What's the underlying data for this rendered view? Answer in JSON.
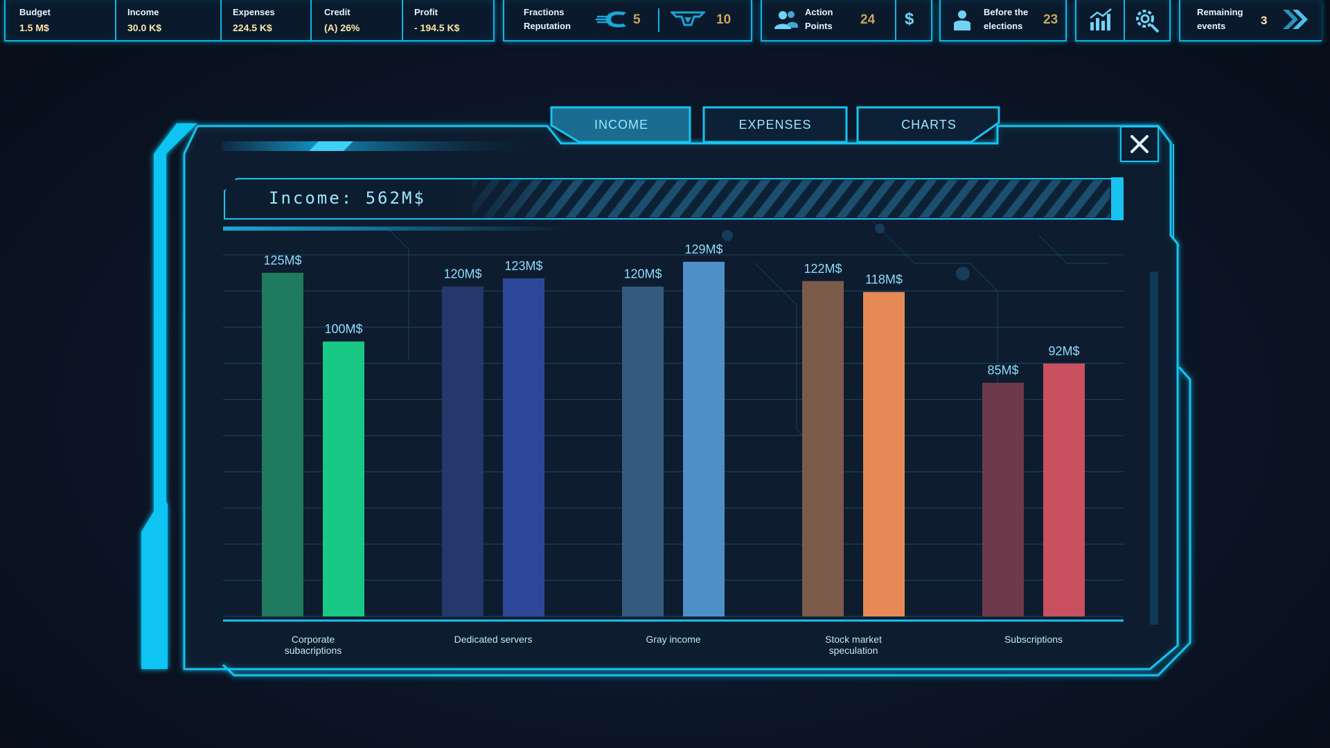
{
  "hud": {
    "budget": {
      "label": "Budget",
      "value": "1.5 M$"
    },
    "income": {
      "label": "Income",
      "value": "30.0 K$"
    },
    "expenses": {
      "label": "Expenses",
      "value": "224.5 K$"
    },
    "credit": {
      "label": "Credit",
      "value": "(A) 26%"
    },
    "profit": {
      "label": "Profit",
      "value": "- 194.5 K$"
    },
    "fractions": {
      "label_line1": "Fractions",
      "label_line2": "Reputation",
      "faction1_value": "5",
      "faction2_value": "10"
    },
    "action_points": {
      "label_line1": "Action",
      "label_line2": "Points",
      "value": "24",
      "currency_symbol": "$"
    },
    "elections": {
      "label_line1": "Before the",
      "label_line2": "elections",
      "value": "23"
    },
    "remaining": {
      "label_line1": "Remaining",
      "label_line2": "events",
      "value": "3"
    }
  },
  "tabs": {
    "income": "INCOME",
    "expenses": "EXPENSES",
    "charts": "CHARTS",
    "active": "income"
  },
  "panel": {
    "header": "Income: 562M$"
  },
  "colors": {
    "accent": "#19c3f0",
    "gold": "#c9a65b"
  },
  "chart_data": {
    "type": "bar",
    "title": "",
    "xlabel": "",
    "ylabel": "",
    "ylim": [
      0,
      150
    ],
    "grid": true,
    "categories": [
      [
        "Corporate",
        "subacriptions"
      ],
      [
        "Dedicated servers"
      ],
      [
        "Gray income"
      ],
      [
        "Stock market",
        "speculation"
      ],
      [
        "Subscriptions"
      ]
    ],
    "series": [
      {
        "values": [
          125,
          120,
          120,
          122,
          85
        ],
        "labels": [
          "125M$",
          "120M$",
          "120M$",
          "122M$",
          "85M$"
        ],
        "colors": [
          "#1f7a5e",
          "#25386c",
          "#345b7f",
          "#7b5a4a",
          "#6d3a4c"
        ]
      },
      {
        "values": [
          100,
          123,
          129,
          118,
          92
        ],
        "labels": [
          "100M$",
          "123M$",
          "129M$",
          "118M$",
          "92M$"
        ],
        "colors": [
          "#19c885",
          "#2e4899",
          "#4f8fc8",
          "#e58a56",
          "#c9515f"
        ]
      }
    ]
  }
}
